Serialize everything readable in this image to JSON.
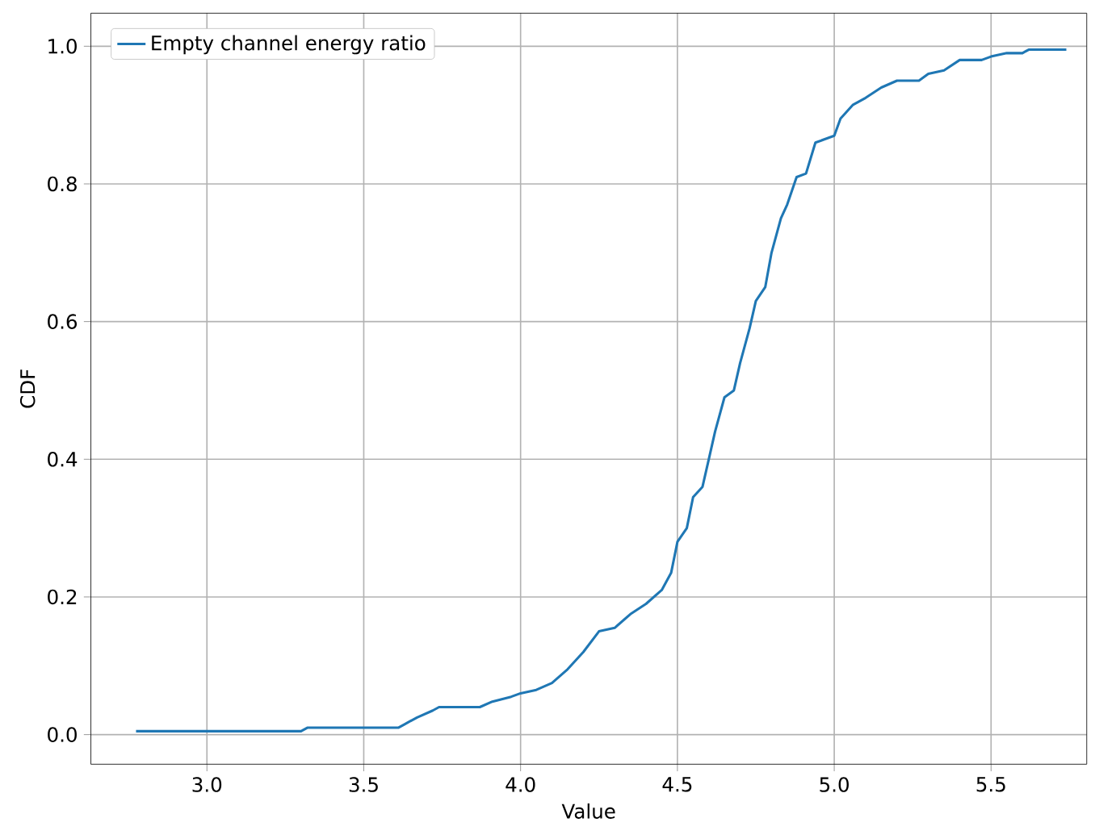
{
  "chart_data": {
    "type": "line",
    "xlabel": "Value",
    "ylabel": "CDF",
    "grid": true,
    "legend": "top left",
    "xlim": [
      2.63,
      5.805
    ],
    "ylim": [
      -0.043,
      1.048
    ],
    "xticks": [
      {
        "value": 3,
        "label": "3.0"
      },
      {
        "value": 3.5,
        "label": "3.5"
      },
      {
        "value": 4,
        "label": "4.0"
      },
      {
        "value": 4.5,
        "label": "4.5"
      },
      {
        "value": 5,
        "label": "5.0"
      },
      {
        "value": 5.5,
        "label": "5.5"
      }
    ],
    "yticks": [
      {
        "value": 0,
        "label": "0.0"
      },
      {
        "value": 0.2,
        "label": "0.2"
      },
      {
        "value": 0.4,
        "label": "0.4"
      },
      {
        "value": 0.6,
        "label": "0.6"
      },
      {
        "value": 0.8,
        "label": "0.8"
      },
      {
        "value": 1,
        "label": "1.0"
      }
    ],
    "series": [
      {
        "name": "Empty channel energy ratio",
        "color": "#1f77b4",
        "x": [
          2.774,
          3.3,
          3.32,
          3.61,
          3.63,
          3.67,
          3.72,
          3.74,
          3.87,
          3.91,
          3.97,
          4.0,
          4.05,
          4.1,
          4.15,
          4.2,
          4.25,
          4.3,
          4.35,
          4.4,
          4.45,
          4.48,
          4.5,
          4.53,
          4.55,
          4.58,
          4.6,
          4.62,
          4.65,
          4.68,
          4.7,
          4.73,
          4.75,
          4.78,
          4.8,
          4.83,
          4.85,
          4.88,
          4.91,
          4.94,
          4.97,
          5.0,
          5.02,
          5.06,
          5.1,
          5.15,
          5.2,
          5.27,
          5.3,
          5.35,
          5.4,
          5.47,
          5.5,
          5.55,
          5.6,
          5.62,
          5.74
        ],
        "values": [
          0.005,
          0.005,
          0.01,
          0.01,
          0.015,
          0.025,
          0.035,
          0.04,
          0.04,
          0.048,
          0.055,
          0.06,
          0.065,
          0.075,
          0.095,
          0.12,
          0.15,
          0.155,
          0.175,
          0.19,
          0.21,
          0.235,
          0.28,
          0.3,
          0.345,
          0.36,
          0.4,
          0.44,
          0.49,
          0.5,
          0.54,
          0.59,
          0.63,
          0.65,
          0.7,
          0.75,
          0.77,
          0.81,
          0.815,
          0.86,
          0.865,
          0.87,
          0.895,
          0.915,
          0.925,
          0.94,
          0.95,
          0.95,
          0.96,
          0.965,
          0.98,
          0.98,
          0.985,
          0.99,
          0.99,
          0.995,
          0.995
        ]
      }
    ]
  }
}
